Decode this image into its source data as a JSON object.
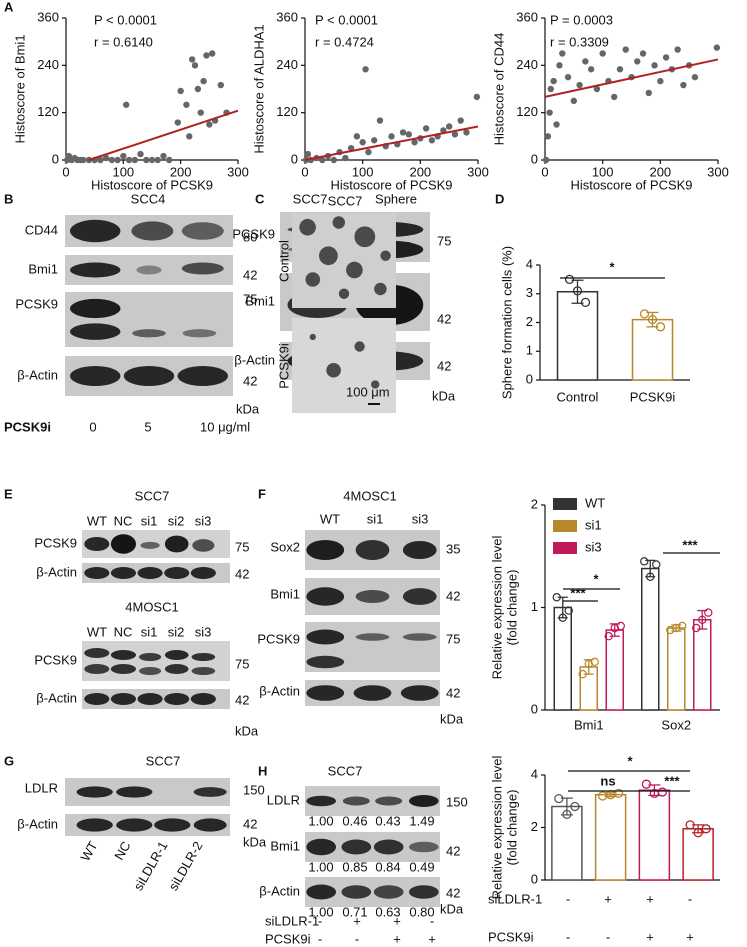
{
  "figure": {
    "panel_labels": [
      "A",
      "B",
      "C",
      "D",
      "E",
      "F",
      "G",
      "H"
    ],
    "B": {
      "title": "SCC4",
      "rows": [
        "CD44",
        "Bmi1",
        "PCSK9",
        "β-Actin"
      ],
      "sizes": [
        80,
        42,
        75,
        42
      ],
      "unit": "kDa",
      "treatment": "PCSK9i",
      "doses": [
        "0",
        "5",
        "10 μg/ml"
      ]
    },
    "C": {
      "columns": [
        "SCC7",
        "Sphere"
      ],
      "rows": [
        "PCSK9",
        "Bmi1",
        "β-Actin"
      ],
      "sizes": [
        75,
        42,
        42
      ],
      "unit": "kDa"
    },
    "D": {
      "title": "SCC7",
      "rows": [
        "Control",
        "PCSK9i"
      ],
      "scale": "100 μm"
    },
    "E": {
      "blots": [
        {
          "title": "SCC7",
          "lanes": [
            "WT",
            "NC",
            "si1",
            "si2",
            "si3"
          ],
          "rows": [
            "PCSK9",
            "β-Actin"
          ],
          "sizes": [
            75,
            42
          ]
        },
        {
          "title": "4MOSC1",
          "lanes": [
            "WT",
            "NC",
            "si1",
            "si2",
            "si3"
          ],
          "rows": [
            "PCSK9",
            "β-Actin"
          ],
          "sizes": [
            75,
            42
          ]
        }
      ],
      "unit": "kDa"
    },
    "F": {
      "title": "4MOSC1",
      "lanes": [
        "WT",
        "si1",
        "si3"
      ],
      "rows": [
        "Sox2",
        "Bmi1",
        "PCSK9",
        "β-Actin"
      ],
      "sizes": [
        35,
        42,
        75,
        42
      ],
      "unit": "kDa"
    },
    "G": {
      "title": "SCC7",
      "rows": [
        "LDLR",
        "β-Actin"
      ],
      "sizes": [
        150,
        42
      ],
      "lanes": [
        "WT",
        "NC",
        "siLDLR-1",
        "siLDLR-2"
      ],
      "unit": "kDa"
    },
    "H": {
      "title": "SCC7",
      "rows": [
        "LDLR",
        "Bmi1",
        "β-Actin"
      ],
      "sizes": [
        150,
        42,
        42
      ],
      "unit": "kDa",
      "quant": [
        [
          "1.00",
          "0.46",
          "0.43",
          "1.49"
        ],
        [
          "1.00",
          "0.85",
          "0.84",
          "0.49"
        ],
        [
          "1.00",
          "0.71",
          "0.63",
          "0.80"
        ]
      ],
      "conditions": [
        {
          "name": "siLDLR-1",
          "signs": [
            "-",
            "+",
            "+",
            "-"
          ]
        },
        {
          "name": "PCSK9i",
          "signs": [
            "-",
            "-",
            "+",
            "+"
          ]
        }
      ]
    }
  },
  "chart_data": [
    {
      "type": "scatter",
      "xlabel": "Histoscore of PCSK9",
      "ylabel": "Histoscore of Bmi1",
      "annotations": [
        "P < 0.0001",
        "r = 0.6140"
      ],
      "annotation_color": "#2e86c1",
      "color": "#666666",
      "x": [
        2,
        5,
        10,
        15,
        20,
        25,
        30,
        40,
        50,
        60,
        70,
        80,
        90,
        100,
        105,
        110,
        120,
        130,
        140,
        150,
        160,
        170,
        180,
        195,
        200,
        210,
        215,
        220,
        225,
        230,
        235,
        240,
        245,
        250,
        255,
        260,
        270,
        280
      ],
      "y": [
        0,
        10,
        0,
        5,
        0,
        0,
        0,
        0,
        0,
        0,
        5,
        0,
        0,
        10,
        140,
        0,
        0,
        15,
        0,
        0,
        0,
        10,
        0,
        95,
        175,
        140,
        60,
        255,
        240,
        180,
        120,
        200,
        265,
        90,
        270,
        100,
        190,
        120
      ],
      "trend": {
        "x": [
          40,
          300
        ],
        "y": [
          0,
          125
        ],
        "color": "#b22222"
      },
      "xlim": [
        0,
        300
      ],
      "ylim": [
        0,
        360
      ],
      "xticks": [
        0,
        100,
        200,
        300
      ],
      "yticks": [
        0,
        120,
        240,
        360
      ]
    },
    {
      "type": "scatter",
      "xlabel": "Histoscore of PCSK9",
      "ylabel": "Histoscore of ALDHA1",
      "annotations": [
        "P < 0.0001",
        "r = 0.4724"
      ],
      "annotation_color": "#2e86c1",
      "color": "#666666",
      "x": [
        2,
        5,
        10,
        20,
        30,
        40,
        50,
        60,
        70,
        80,
        90,
        100,
        105,
        110,
        120,
        130,
        140,
        150,
        160,
        170,
        180,
        190,
        200,
        210,
        220,
        230,
        240,
        250,
        260,
        270,
        280,
        298
      ],
      "y": [
        0,
        15,
        0,
        5,
        0,
        10,
        0,
        20,
        5,
        30,
        60,
        45,
        230,
        20,
        50,
        100,
        35,
        60,
        40,
        70,
        65,
        45,
        55,
        80,
        50,
        60,
        75,
        85,
        65,
        100,
        70,
        160
      ],
      "trend": {
        "x": [
          0,
          300
        ],
        "y": [
          0,
          85
        ],
        "color": "#b22222"
      },
      "xlim": [
        0,
        300
      ],
      "ylim": [
        0,
        360
      ],
      "xticks": [
        0,
        100,
        200,
        300
      ],
      "yticks": [
        0,
        120,
        240,
        360
      ]
    },
    {
      "type": "scatter",
      "xlabel": "Histoscore of PCSK9",
      "ylabel": "Histoscore of CD44",
      "annotations": [
        "P = 0.0003",
        "r = 0.3309"
      ],
      "annotation_color": "#2e86c1",
      "color": "#666666",
      "x": [
        2,
        5,
        8,
        10,
        15,
        20,
        25,
        30,
        40,
        50,
        60,
        70,
        80,
        90,
        100,
        110,
        120,
        130,
        140,
        150,
        160,
        170,
        180,
        190,
        200,
        210,
        220,
        230,
        240,
        250,
        260,
        298
      ],
      "y": [
        0,
        60,
        120,
        180,
        200,
        90,
        240,
        270,
        210,
        150,
        190,
        250,
        230,
        180,
        270,
        200,
        160,
        230,
        280,
        210,
        250,
        270,
        170,
        240,
        200,
        260,
        230,
        280,
        190,
        240,
        210,
        285
      ],
      "trend": {
        "x": [
          0,
          300
        ],
        "y": [
          160,
          255
        ],
        "color": "#b22222"
      },
      "xlim": [
        0,
        300
      ],
      "ylim": [
        0,
        360
      ],
      "xticks": [
        0,
        100,
        200,
        300
      ],
      "yticks": [
        0,
        120,
        240,
        360
      ]
    },
    {
      "type": "bar",
      "ylabel": [
        "Sphere formation cells (%)"
      ],
      "categories": [
        "Control",
        "PCSK9i"
      ],
      "values": [
        3.07,
        2.1
      ],
      "errors": [
        0.4,
        0.25
      ],
      "points": [
        [
          3.5,
          3.1,
          2.7
        ],
        [
          2.3,
          2.1,
          1.85
        ]
      ],
      "colors": [
        "#333333",
        "#b8862b"
      ],
      "annotations": [
        "*"
      ],
      "ylim": [
        0,
        4
      ],
      "yticks": [
        0,
        1,
        2,
        3,
        4
      ]
    },
    {
      "type": "grouped_bar",
      "ylabel": [
        "Relative expression level",
        "(fold change)"
      ],
      "categories": [
        "Bmi1",
        "Sox2"
      ],
      "series": [
        {
          "name": "WT",
          "color": "#333333",
          "values": [
            1.0,
            1.38
          ],
          "errors": [
            0.1,
            0.08
          ],
          "points": [
            [
              1.1,
              0.9,
              0.97
            ],
            [
              1.45,
              1.3,
              1.42
            ]
          ]
        },
        {
          "name": "si1",
          "color": "#b8862b",
          "values": [
            0.42,
            0.8
          ],
          "errors": [
            0.07,
            0.03
          ],
          "points": [
            [
              0.35,
              0.45,
              0.47
            ],
            [
              0.78,
              0.8,
              0.82
            ]
          ]
        },
        {
          "name": "si3",
          "color": "#c0185a",
          "values": [
            0.78,
            0.88
          ],
          "errors": [
            0.06,
            0.09
          ],
          "points": [
            [
              0.72,
              0.8,
              0.82
            ],
            [
              0.8,
              0.88,
              0.95
            ]
          ]
        }
      ],
      "annotations": [
        "***",
        "*",
        "***"
      ],
      "legend": "top-left",
      "ylim": [
        0,
        2
      ],
      "yticks": [
        0,
        1,
        2
      ]
    },
    {
      "type": "bar",
      "ylabel": [
        "Relative expression level",
        "(fold change)"
      ],
      "categories": [
        null,
        null,
        null,
        null
      ],
      "values": [
        2.8,
        3.25,
        3.42,
        1.95
      ],
      "errors": [
        0.32,
        0.07,
        0.2,
        0.15
      ],
      "points": [
        [
          3.1,
          2.5,
          2.8
        ],
        [
          3.2,
          3.25,
          3.3
        ],
        [
          3.65,
          3.3,
          3.35
        ],
        [
          2.1,
          1.8,
          1.95
        ]
      ],
      "colors": [
        "#555555",
        "#b8862b",
        "#c0185a",
        "#b22222"
      ],
      "annotations": [
        "*",
        "ns",
        "***"
      ],
      "ylim": [
        0,
        4
      ],
      "yticks": [
        0,
        2,
        4
      ]
    }
  ]
}
